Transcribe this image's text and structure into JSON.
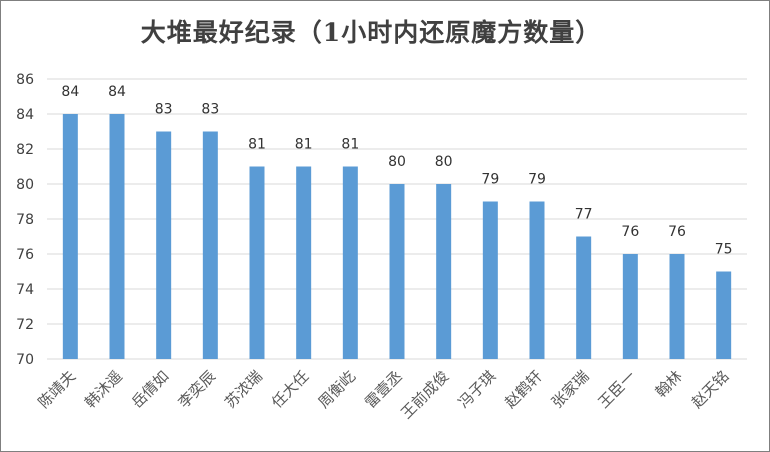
{
  "chart_data": {
    "type": "bar",
    "title": "大堆最好纪录（1小时内还原魔方数量）",
    "categories": [
      "陈靖夫",
      "韩沐遥",
      "岳倩如",
      "李奕辰",
      "苏浓瑞",
      "任大任",
      "周衡屹",
      "雷壹丞",
      "王前成俊",
      "冯子琪",
      "赵鹤轩",
      "张家瑞",
      "王臣一",
      "翰林",
      "赵天铭"
    ],
    "values": [
      84,
      84,
      83,
      83,
      81,
      81,
      81,
      80,
      80,
      79,
      79,
      77,
      76,
      76,
      75
    ],
    "ylim": [
      70,
      86
    ],
    "yticks": [
      70,
      72,
      74,
      76,
      78,
      80,
      82,
      84,
      86
    ],
    "grid": true,
    "bar_color": "#5b9bd5",
    "grid_color": "#d9d9d9"
  }
}
